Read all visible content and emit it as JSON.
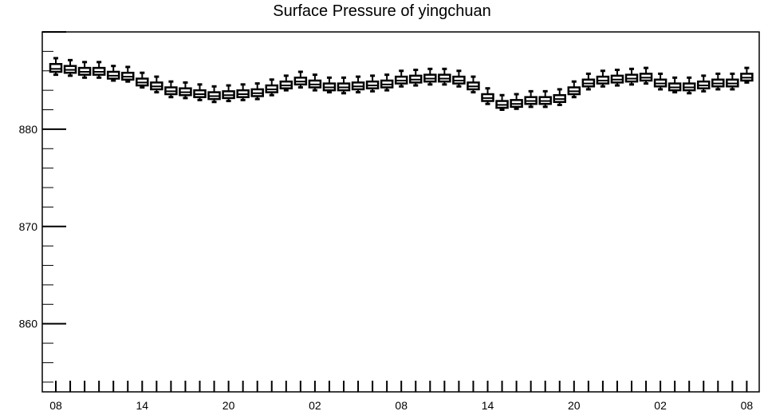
{
  "chart_data": {
    "type": "boxplot",
    "title": "Surface Pressure of yingchuan",
    "xlabel": "",
    "ylabel": "",
    "ylim": [
      853,
      890
    ],
    "y_ticks": [
      860,
      870,
      880
    ],
    "x_ticks": [
      "08",
      "14",
      "20",
      "02",
      "08",
      "14",
      "20",
      "02",
      "08"
    ],
    "x_tick_positions": [
      0,
      6,
      12,
      18,
      24,
      30,
      36,
      42,
      48
    ],
    "grid": false,
    "legend": "none",
    "boxes": [
      {
        "x": 0,
        "whisker_low": 885.6,
        "q1": 885.9,
        "median": 886.2,
        "q3": 886.7,
        "whisker_high": 887.3
      },
      {
        "x": 1,
        "whisker_low": 885.5,
        "q1": 885.8,
        "median": 886.1,
        "q3": 886.5,
        "whisker_high": 887.1
      },
      {
        "x": 2,
        "whisker_low": 885.3,
        "q1": 885.6,
        "median": 885.9,
        "q3": 886.3,
        "whisker_high": 886.9
      },
      {
        "x": 3,
        "whisker_low": 885.3,
        "q1": 885.6,
        "median": 885.9,
        "q3": 886.3,
        "whisker_high": 886.9
      },
      {
        "x": 4,
        "whisker_low": 885.0,
        "q1": 885.2,
        "median": 885.5,
        "q3": 885.9,
        "whisker_high": 886.5
      },
      {
        "x": 5,
        "whisker_low": 884.9,
        "q1": 885.1,
        "median": 885.4,
        "q3": 885.8,
        "whisker_high": 886.4
      },
      {
        "x": 6,
        "whisker_low": 884.3,
        "q1": 884.5,
        "median": 884.8,
        "q3": 885.2,
        "whisker_high": 885.8
      },
      {
        "x": 7,
        "whisker_low": 883.8,
        "q1": 884.1,
        "median": 884.4,
        "q3": 884.8,
        "whisker_high": 885.4
      },
      {
        "x": 8,
        "whisker_low": 883.3,
        "q1": 883.6,
        "median": 883.9,
        "q3": 884.3,
        "whisker_high": 884.9
      },
      {
        "x": 9,
        "whisker_low": 883.2,
        "q1": 883.5,
        "median": 883.8,
        "q3": 884.2,
        "whisker_high": 884.8
      },
      {
        "x": 10,
        "whisker_low": 883.0,
        "q1": 883.3,
        "median": 883.6,
        "q3": 884.0,
        "whisker_high": 884.6
      },
      {
        "x": 11,
        "whisker_low": 882.8,
        "q1": 883.1,
        "median": 883.4,
        "q3": 883.8,
        "whisker_high": 884.4
      },
      {
        "x": 12,
        "whisker_low": 882.9,
        "q1": 883.2,
        "median": 883.5,
        "q3": 883.9,
        "whisker_high": 884.5
      },
      {
        "x": 13,
        "whisker_low": 883.0,
        "q1": 883.3,
        "median": 883.6,
        "q3": 884.0,
        "whisker_high": 884.6
      },
      {
        "x": 14,
        "whisker_low": 883.1,
        "q1": 883.4,
        "median": 883.7,
        "q3": 884.1,
        "whisker_high": 884.7
      },
      {
        "x": 15,
        "whisker_low": 883.5,
        "q1": 883.8,
        "median": 884.1,
        "q3": 884.5,
        "whisker_high": 885.1
      },
      {
        "x": 16,
        "whisker_low": 884.0,
        "q1": 884.2,
        "median": 884.5,
        "q3": 884.9,
        "whisker_high": 885.5
      },
      {
        "x": 17,
        "whisker_low": 884.3,
        "q1": 884.6,
        "median": 884.9,
        "q3": 885.3,
        "whisker_high": 885.9
      },
      {
        "x": 18,
        "whisker_low": 884.0,
        "q1": 884.3,
        "median": 884.6,
        "q3": 885.0,
        "whisker_high": 885.6
      },
      {
        "x": 19,
        "whisker_low": 883.8,
        "q1": 884.0,
        "median": 884.3,
        "q3": 884.7,
        "whisker_high": 885.3
      },
      {
        "x": 20,
        "whisker_low": 883.7,
        "q1": 884.0,
        "median": 884.3,
        "q3": 884.7,
        "whisker_high": 885.3
      },
      {
        "x": 21,
        "whisker_low": 883.8,
        "q1": 884.1,
        "median": 884.4,
        "q3": 884.8,
        "whisker_high": 885.4
      },
      {
        "x": 22,
        "whisker_low": 883.9,
        "q1": 884.2,
        "median": 884.5,
        "q3": 884.9,
        "whisker_high": 885.5
      },
      {
        "x": 23,
        "whisker_low": 884.0,
        "q1": 884.3,
        "median": 884.6,
        "q3": 885.0,
        "whisker_high": 885.6
      },
      {
        "x": 24,
        "whisker_low": 884.4,
        "q1": 884.7,
        "median": 885.0,
        "q3": 885.4,
        "whisker_high": 886.0
      },
      {
        "x": 25,
        "whisker_low": 884.5,
        "q1": 884.8,
        "median": 885.1,
        "q3": 885.5,
        "whisker_high": 886.1
      },
      {
        "x": 26,
        "whisker_low": 884.6,
        "q1": 884.9,
        "median": 885.2,
        "q3": 885.6,
        "whisker_high": 886.2
      },
      {
        "x": 27,
        "whisker_low": 884.6,
        "q1": 884.9,
        "median": 885.2,
        "q3": 885.6,
        "whisker_high": 886.2
      },
      {
        "x": 28,
        "whisker_low": 884.4,
        "q1": 884.7,
        "median": 885.0,
        "q3": 885.4,
        "whisker_high": 886.0
      },
      {
        "x": 29,
        "whisker_low": 883.8,
        "q1": 884.1,
        "median": 884.4,
        "q3": 884.8,
        "whisker_high": 885.4
      },
      {
        "x": 30,
        "whisker_low": 882.6,
        "q1": 882.9,
        "median": 883.2,
        "q3": 883.6,
        "whisker_high": 884.2
      },
      {
        "x": 31,
        "whisker_low": 882.0,
        "q1": 882.2,
        "median": 882.5,
        "q3": 882.9,
        "whisker_high": 883.5
      },
      {
        "x": 32,
        "whisker_low": 882.1,
        "q1": 882.3,
        "median": 882.6,
        "q3": 883.0,
        "whisker_high": 883.6
      },
      {
        "x": 33,
        "whisker_low": 882.3,
        "q1": 882.6,
        "median": 882.9,
        "q3": 883.3,
        "whisker_high": 883.9
      },
      {
        "x": 34,
        "whisker_low": 882.3,
        "q1": 882.6,
        "median": 882.9,
        "q3": 883.3,
        "whisker_high": 883.9
      },
      {
        "x": 35,
        "whisker_low": 882.5,
        "q1": 882.8,
        "median": 883.1,
        "q3": 883.5,
        "whisker_high": 884.1
      },
      {
        "x": 36,
        "whisker_low": 883.3,
        "q1": 883.6,
        "median": 883.9,
        "q3": 884.3,
        "whisker_high": 884.9
      },
      {
        "x": 37,
        "whisker_low": 884.1,
        "q1": 884.4,
        "median": 884.7,
        "q3": 885.1,
        "whisker_high": 885.7
      },
      {
        "x": 38,
        "whisker_low": 884.4,
        "q1": 884.7,
        "median": 885.0,
        "q3": 885.4,
        "whisker_high": 886.0
      },
      {
        "x": 39,
        "whisker_low": 884.5,
        "q1": 884.8,
        "median": 885.1,
        "q3": 885.5,
        "whisker_high": 886.1
      },
      {
        "x": 40,
        "whisker_low": 884.6,
        "q1": 884.9,
        "median": 885.2,
        "q3": 885.6,
        "whisker_high": 886.2
      },
      {
        "x": 41,
        "whisker_low": 884.7,
        "q1": 885.0,
        "median": 885.3,
        "q3": 885.7,
        "whisker_high": 886.3
      },
      {
        "x": 42,
        "whisker_low": 884.1,
        "q1": 884.4,
        "median": 884.7,
        "q3": 885.1,
        "whisker_high": 885.7
      },
      {
        "x": 43,
        "whisker_low": 883.8,
        "q1": 884.0,
        "median": 884.3,
        "q3": 884.7,
        "whisker_high": 885.3
      },
      {
        "x": 44,
        "whisker_low": 883.7,
        "q1": 884.0,
        "median": 884.3,
        "q3": 884.7,
        "whisker_high": 885.3
      },
      {
        "x": 45,
        "whisker_low": 883.9,
        "q1": 884.2,
        "median": 884.5,
        "q3": 884.9,
        "whisker_high": 885.5
      },
      {
        "x": 46,
        "whisker_low": 884.1,
        "q1": 884.4,
        "median": 884.7,
        "q3": 885.1,
        "whisker_high": 885.7
      },
      {
        "x": 47,
        "whisker_low": 884.1,
        "q1": 884.4,
        "median": 884.7,
        "q3": 885.1,
        "whisker_high": 885.7
      },
      {
        "x": 48,
        "whisker_low": 884.8,
        "q1": 885.0,
        "median": 885.3,
        "q3": 885.7,
        "whisker_high": 886.3
      }
    ]
  }
}
